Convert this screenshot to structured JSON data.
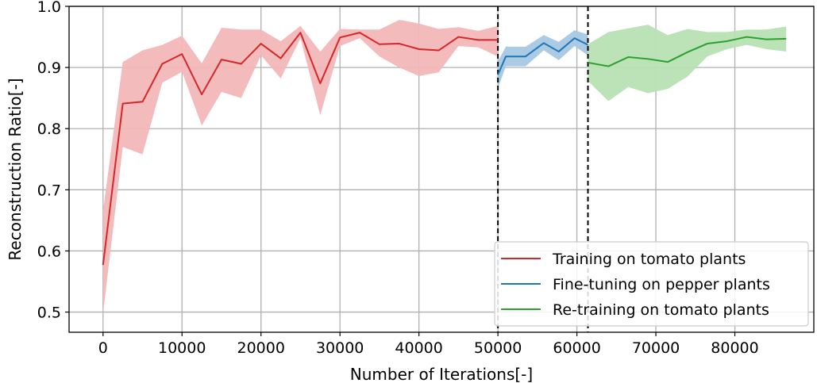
{
  "chart_data": {
    "type": "line",
    "xlabel": "Number of Iterations[-]",
    "ylabel": "Reconstruction Ratio[-]",
    "xlim": [
      -4300,
      90000
    ],
    "ylim": [
      0.467,
      1.0
    ],
    "xticks": [
      0,
      10000,
      20000,
      30000,
      40000,
      50000,
      60000,
      70000,
      80000
    ],
    "xtick_labels": [
      "0",
      "10000",
      "20000",
      "30000",
      "40000",
      "50000",
      "60000",
      "70000",
      "80000"
    ],
    "yticks": [
      0.5,
      0.6,
      0.7,
      0.8,
      0.9,
      1.0
    ],
    "ytick_labels": [
      "0.5",
      "0.6",
      "0.7",
      "0.8",
      "0.9",
      "1.0"
    ],
    "grid": true,
    "legend_position": "lower-right",
    "vlines": [
      50000,
      61400
    ],
    "series": [
      {
        "name": "Training on tomato plants",
        "color": "#d62728",
        "fill": "#f2b7b8",
        "x": [
          0,
          2500,
          5000,
          7500,
          10000,
          12500,
          15000,
          17500,
          20000,
          22500,
          25000,
          27500,
          30000,
          32500,
          35000,
          37500,
          40000,
          42500,
          45000,
          47500,
          50000
        ],
        "y": [
          0.577,
          0.841,
          0.844,
          0.906,
          0.922,
          0.856,
          0.913,
          0.906,
          0.939,
          0.915,
          0.957,
          0.874,
          0.949,
          0.957,
          0.938,
          0.939,
          0.93,
          0.928,
          0.95,
          0.945,
          0.945
        ],
        "lower": [
          0.497,
          0.77,
          0.758,
          0.875,
          0.893,
          0.805,
          0.86,
          0.85,
          0.92,
          0.882,
          0.948,
          0.822,
          0.935,
          0.948,
          0.918,
          0.9,
          0.886,
          0.892,
          0.935,
          0.933,
          0.918
        ],
        "upper": [
          0.665,
          0.909,
          0.928,
          0.937,
          0.952,
          0.907,
          0.965,
          0.962,
          0.962,
          0.943,
          0.968,
          0.926,
          0.963,
          0.962,
          0.962,
          0.978,
          0.972,
          0.963,
          0.966,
          0.96,
          0.968
        ]
      },
      {
        "name": "Fine-tuning on pepper plants",
        "color": "#1f77b4",
        "fill": "#a7c8e3",
        "x": [
          50000,
          51000,
          53500,
          55800,
          57700,
          59700,
          61400
        ],
        "y": [
          0.888,
          0.918,
          0.918,
          0.94,
          0.926,
          0.948,
          0.937
        ],
        "lower": [
          0.866,
          0.902,
          0.902,
          0.928,
          0.912,
          0.935,
          0.92
        ],
        "upper": [
          0.91,
          0.934,
          0.934,
          0.953,
          0.942,
          0.961,
          0.954
        ]
      },
      {
        "name": "Re-training on tomato plants",
        "color": "#2ca02c",
        "fill": "#b8e0b4",
        "x": [
          61400,
          64000,
          66500,
          69000,
          71500,
          74000,
          76500,
          79000,
          81500,
          84000,
          86500
        ],
        "y": [
          0.908,
          0.902,
          0.917,
          0.914,
          0.909,
          0.925,
          0.939,
          0.943,
          0.95,
          0.946,
          0.947
        ],
        "lower": [
          0.878,
          0.845,
          0.868,
          0.858,
          0.865,
          0.885,
          0.918,
          0.93,
          0.937,
          0.93,
          0.926
        ],
        "upper": [
          0.938,
          0.958,
          0.964,
          0.97,
          0.953,
          0.963,
          0.958,
          0.958,
          0.962,
          0.962,
          0.967
        ]
      }
    ]
  }
}
